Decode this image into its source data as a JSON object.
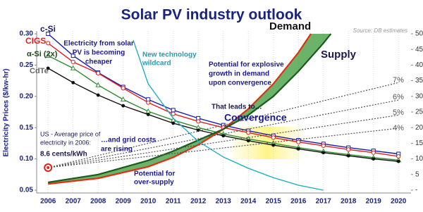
{
  "chart_data": {
    "type": "line",
    "title": "Solar PV industry outlook",
    "source": "Source: DB estimates",
    "y_label": "Electricity Prices ($/kw-hr)",
    "xlim": [
      2005.6,
      2020.5
    ],
    "xticks": [
      2006,
      2007,
      2008,
      2009,
      2010,
      2011,
      2012,
      2013,
      2014,
      2015,
      2016,
      2017,
      2018,
      2019,
      2020
    ],
    "ylim": [
      0.05,
      0.3
    ],
    "yticks": [
      0.05,
      {
        "value": 0.1,
        "label": "0.10"
      },
      0.15,
      {
        "value": 0.2,
        "label": "0.20"
      },
      0.25,
      {
        "value": 0.3,
        "label": "0.30"
      }
    ],
    "y2lim": [
      0,
      50
    ],
    "y2ticks": [
      {
        "value": 0,
        "label": "-"
      },
      5,
      10,
      15,
      20,
      25,
      30,
      35,
      40,
      45,
      50
    ],
    "grid": "x",
    "series": [
      {
        "name": "c-Si",
        "color": "#1a1aa6",
        "marker": "square",
        "x": [
          2006,
          2007,
          2008,
          2009,
          2010,
          2011,
          2012,
          2013,
          2014,
          2015,
          2016,
          2017,
          2018,
          2019,
          2020
        ],
        "values": [
          0.3,
          0.265,
          0.238,
          0.215,
          0.195,
          0.178,
          0.165,
          0.154,
          0.145,
          0.137,
          0.13,
          0.124,
          0.118,
          0.113,
          0.108
        ]
      },
      {
        "name": "CIGS",
        "color": "#e02020",
        "marker": "circle",
        "x": [
          2006,
          2007,
          2008,
          2009,
          2010,
          2011,
          2012,
          2013,
          2014,
          2015,
          2016,
          2017,
          2018,
          2019,
          2020
        ],
        "values": [
          0.285,
          0.255,
          0.237,
          0.213,
          0.19,
          0.172,
          0.16,
          0.15,
          0.142,
          0.134,
          0.127,
          0.121,
          0.115,
          0.11,
          0.104
        ]
      },
      {
        "name": "α-Si (2x)",
        "color": "#2e8b2e",
        "marker": "triangle",
        "x": [
          2006,
          2007,
          2008,
          2009,
          2010,
          2011,
          2012,
          2013,
          2014,
          2015,
          2016,
          2017,
          2018,
          2019,
          2020
        ],
        "values": [
          0.265,
          0.245,
          0.218,
          0.195,
          0.176,
          0.162,
          0.15,
          0.14,
          0.132,
          0.125,
          0.118,
          0.112,
          0.107,
          0.102,
          0.098
        ]
      },
      {
        "name": "CdTe",
        "color": "#111111",
        "marker": "dot",
        "x": [
          2006,
          2007,
          2008,
          2009,
          2010,
          2011,
          2012,
          2013,
          2014,
          2015,
          2016,
          2017,
          2018,
          2019,
          2020
        ],
        "values": [
          0.245,
          0.222,
          0.202,
          0.185,
          0.171,
          0.157,
          0.146,
          0.137,
          0.129,
          0.122,
          0.116,
          0.11,
          0.105,
          0.1,
          0.096
        ]
      },
      {
        "name": "Demand",
        "color": "#e03010",
        "axis": "y2",
        "x": [
          2006,
          2008,
          2010,
          2011,
          2012,
          2013,
          2014,
          2015,
          2016,
          2016.5
        ],
        "values": [
          2,
          3.8,
          7.5,
          10.5,
          14.5,
          19.5,
          26,
          34,
          44,
          50
        ]
      },
      {
        "name": "Supply",
        "color": "#1a5a1a",
        "axis": "y2",
        "x": [
          2006,
          2008,
          2010,
          2011,
          2012,
          2013,
          2014,
          2015,
          2016,
          2017,
          2017.3
        ],
        "values": [
          2.5,
          5,
          9.5,
          12.5,
          16,
          19.5,
          24,
          30,
          38,
          47,
          50
        ]
      },
      {
        "color": "#20b0c0",
        "x": [
          2009.4,
          2010,
          2011,
          2012,
          2013,
          2014,
          2015,
          2016,
          2017
        ],
        "values": [
          0.29,
          0.22,
          0.165,
          0.128,
          0.103,
          0.085,
          0.07,
          0.058,
          0.05
        ]
      },
      {
        "name": "7%",
        "color": "#555555",
        "dash": true,
        "x": [
          2006,
          2020
        ],
        "values": [
          0.086,
          0.222
        ]
      },
      {
        "name": "6%",
        "color": "#555555",
        "dash": true,
        "x": [
          2006,
          2020
        ],
        "values": [
          0.086,
          0.194
        ]
      },
      {
        "name": "5%",
        "color": "#555555",
        "dash": true,
        "x": [
          2006,
          2020
        ],
        "values": [
          0.086,
          0.17
        ]
      },
      {
        "name": "4%",
        "color": "#555555",
        "dash": true,
        "x": [
          2006,
          2020
        ],
        "values": [
          0.086,
          0.149
        ]
      }
    ],
    "annotations": [
      {
        "lines": [
          "Electricity from solar",
          "PV is becoming",
          "cheaper"
        ]
      },
      {
        "lines": [
          "New technology",
          "wildcard"
        ]
      },
      {
        "lines": [
          "Potential for explosive",
          "growth in demand",
          "upon convergence"
        ]
      },
      {
        "lines": [
          "That leads to…"
        ]
      },
      {
        "lines": [
          "Convergence"
        ]
      },
      {
        "lines": [
          "US - Average price of",
          "electricity in 2006:"
        ]
      },
      {
        "lines": [
          "8.6 cents/kWh"
        ]
      },
      {
        "lines": [
          "…and grid costs",
          "are rising"
        ]
      },
      {
        "lines": [
          "Potential for",
          "over-supply"
        ]
      }
    ]
  }
}
